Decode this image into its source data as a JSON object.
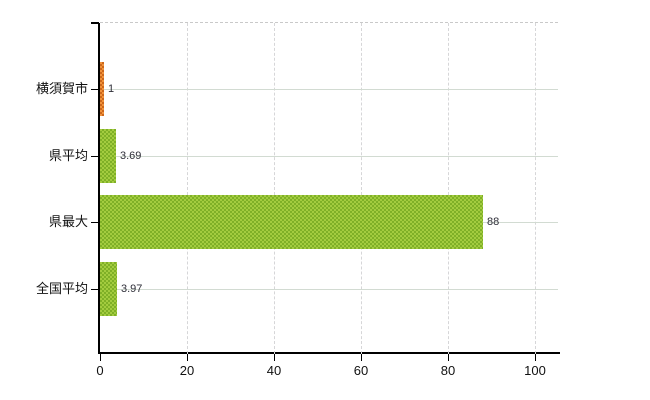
{
  "chart_data": {
    "type": "bar",
    "orientation": "horizontal",
    "title": "",
    "legend": "none",
    "grid": true,
    "categories": [
      "横須賀市",
      "県平均",
      "県最大",
      "全国平均"
    ],
    "values": [
      1,
      3.69,
      88,
      3.97
    ],
    "value_labels": [
      "1",
      "3.69",
      "88",
      "3.97"
    ],
    "bar_colors": [
      {
        "base": "#f0923a",
        "dot": "#cc671c"
      },
      {
        "base": "#a3cc3f",
        "dot": "#7fb027"
      },
      {
        "base": "#a3cc3f",
        "dot": "#7fb027"
      },
      {
        "base": "#a3cc3f",
        "dot": "#7fb027"
      }
    ],
    "x_tick_labels": [
      "0",
      "20",
      "40",
      "60",
      "80",
      "100"
    ],
    "x_tick_values": [
      0,
      20,
      40,
      60,
      80,
      100
    ],
    "xlim": [
      0,
      105.3
    ],
    "colors": {
      "background": "#ffffff",
      "axis": "#000000",
      "h_gridline": "#d2dbd2",
      "v_gridline": "#d6d6d8",
      "top_border": "#c9c9c9",
      "category_label": "#111111",
      "tick_label": "#111111",
      "value_label": "#2e2e38"
    }
  }
}
